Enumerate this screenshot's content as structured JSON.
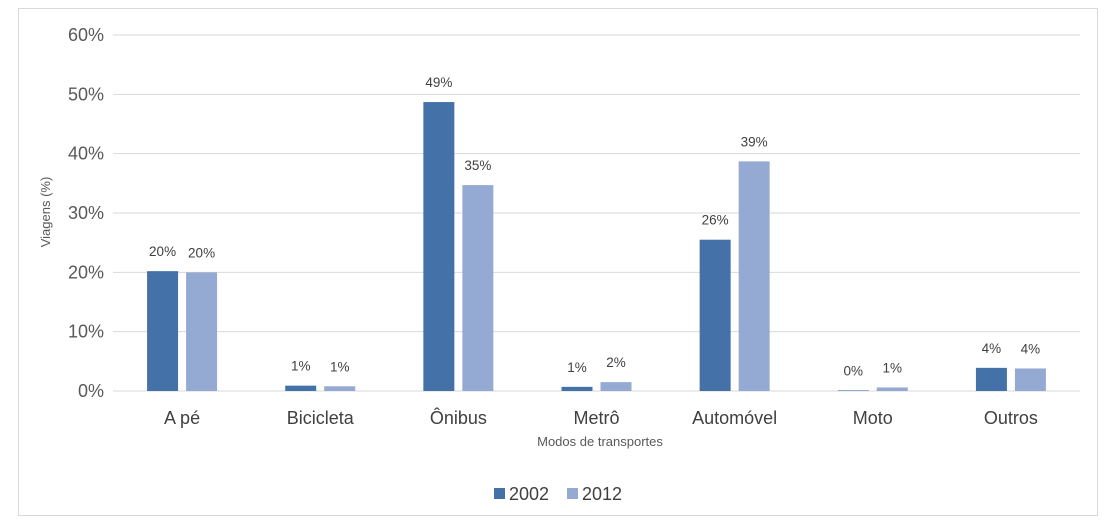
{
  "chart_data": {
    "type": "bar",
    "categories": [
      "A pé",
      "Bicicleta",
      "Ônibus",
      "Metrô",
      "Automóvel",
      "Moto",
      "Outros"
    ],
    "series": [
      {
        "name": "2002",
        "values": [
          20.2,
          0.9,
          48.7,
          0.7,
          25.5,
          0.1,
          3.9
        ],
        "labels": [
          "20%",
          "1%",
          "49%",
          "1%",
          "26%",
          "0%",
          "4%"
        ]
      },
      {
        "name": "2012",
        "values": [
          20.0,
          0.8,
          34.7,
          1.5,
          38.7,
          0.6,
          3.8
        ],
        "labels": [
          "20%",
          "1%",
          "35%",
          "2%",
          "39%",
          "1%",
          "4%"
        ]
      }
    ],
    "y_ticks": [
      "0%",
      "10%",
      "20%",
      "30%",
      "40%",
      "50%",
      "60%"
    ],
    "ylim": [
      0,
      60
    ],
    "xlabel": "Modos de transportes",
    "ylabel": "Viagens (%)",
    "grid": true,
    "legend_position": "bottom",
    "colors": {
      "2002": "#4472a8",
      "2012": "#95aad3"
    }
  }
}
